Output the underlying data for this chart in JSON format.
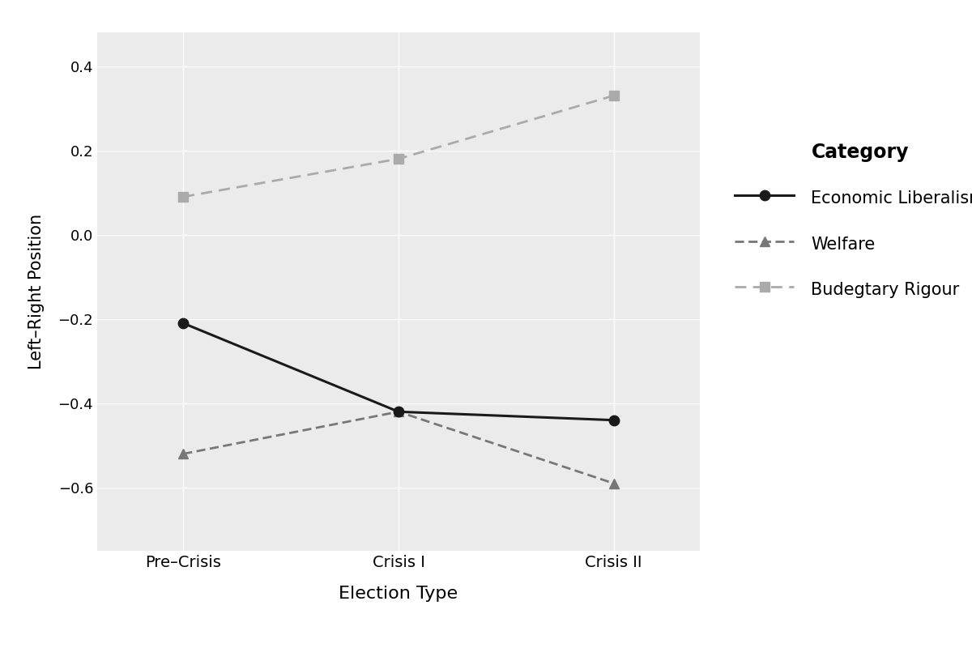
{
  "x_labels": [
    "Pre–Crisis",
    "Crisis I",
    "Crisis II"
  ],
  "x_positions": [
    0,
    1,
    2
  ],
  "series": [
    {
      "name": "Economic Liberalism",
      "values": [
        -0.21,
        -0.42,
        -0.44
      ],
      "color": "#1a1a1a",
      "linestyle": "solid",
      "marker": "o",
      "linewidth": 2.2,
      "markersize": 9,
      "zorder": 3
    },
    {
      "name": "Welfare",
      "values": [
        -0.52,
        -0.42,
        -0.59
      ],
      "color": "#777777",
      "linestyle": "dashed_dot",
      "marker": "^",
      "linewidth": 2.0,
      "markersize": 9,
      "zorder": 2
    },
    {
      "name": "Budegtary Rigour",
      "values": [
        0.09,
        0.18,
        0.33
      ],
      "color": "#aaaaaa",
      "linestyle": "dashed",
      "marker": "s",
      "linewidth": 2.0,
      "markersize": 9,
      "zorder": 2
    }
  ],
  "xlabel": "Election Type",
  "ylabel": "Left–Right Position",
  "ylim": [
    -0.75,
    0.48
  ],
  "yticks": [
    -0.6,
    -0.4,
    -0.2,
    0.0,
    0.2,
    0.4
  ],
  "ytick_labels": [
    "−0.6",
    "−0.4",
    "−0.2",
    "0.0",
    "0.2",
    "0.4"
  ],
  "legend_title": "Category",
  "fig_background": "#ffffff",
  "plot_background": "#ebebeb",
  "grid_color": "#ffffff",
  "fig_width": 12.0,
  "fig_height": 8.0
}
